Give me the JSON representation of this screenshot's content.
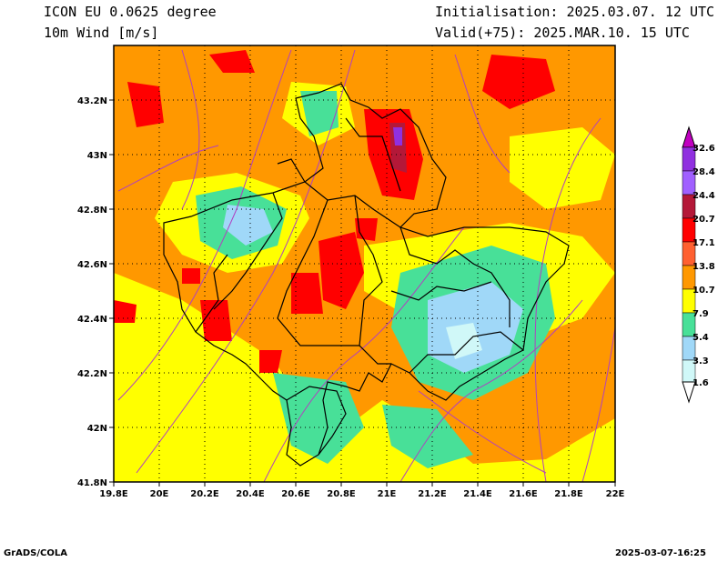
{
  "header": {
    "model": "ICON EU 0.0625 degree",
    "variable": "10m Wind [m/s]",
    "init": "Initialisation: 2025.03.07. 12 UTC",
    "valid": "Valid(+75): 2025.MAR.10. 15 UTC"
  },
  "footer": {
    "left": "GrADS/COLA",
    "right": "2025-03-07-16:25"
  },
  "axes": {
    "x_ticks": [
      "19.8E",
      "20E",
      "20.2E",
      "20.4E",
      "20.6E",
      "20.8E",
      "21E",
      "21.2E",
      "21.4E",
      "21.6E",
      "21.8E",
      "22E"
    ],
    "y_ticks": [
      "43.2N",
      "43N",
      "42.8N",
      "42.6N",
      "42.4N",
      "42.2N",
      "42N",
      "41.8N"
    ],
    "lon_range": [
      19.8,
      22.0
    ],
    "lat_range": [
      41.8,
      43.4
    ]
  },
  "colorbar": {
    "labels": [
      "1.6",
      "3.3",
      "5.4",
      "7.9",
      "10.7",
      "13.8",
      "17.1",
      "20.7",
      "24.4",
      "28.4",
      "32.6"
    ],
    "colors": [
      "#d0f8f8",
      "#a0d8f8",
      "#48e098",
      "#ffff00",
      "#ff9800",
      "#ff0000",
      "#b41838",
      "#a060ff",
      "#9030e0",
      "#c000c0"
    ]
  }
}
